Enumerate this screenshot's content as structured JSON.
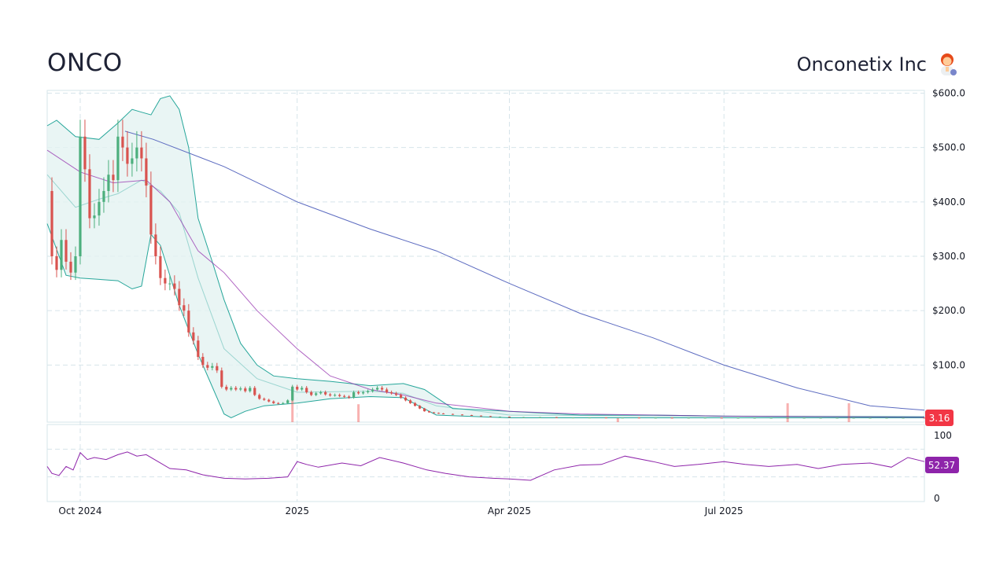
{
  "header": {
    "ticker": "ONCO",
    "company": "Onconetix Inc",
    "company_icon": "scientist-woman-icon"
  },
  "colors": {
    "up": "#26a69a",
    "up_candle": "#4caf7d",
    "down": "#ef5350",
    "down_candle": "#d9534f",
    "sma": "#5c6bc0",
    "bb_fill": "#e3f2f1",
    "bb_line": "#26a69a",
    "rsi": "#8e24aa",
    "grid": "#d6e4ea",
    "last_price_tag": "#f23645",
    "rsi_tag": "#8e24aa"
  },
  "chart_data": {
    "type": "candlestick",
    "price_axis": {
      "ticks": [
        "$600.0",
        "$500.0",
        "$400.0",
        "$300.0",
        "$200.0",
        "$100.0"
      ],
      "tick_values": [
        600,
        500,
        400,
        300,
        200,
        100
      ],
      "ylim": [
        -5,
        605
      ]
    },
    "rsi_axis": {
      "ticks": [
        "100",
        "0"
      ],
      "tick_values": [
        100,
        0
      ],
      "ylim": [
        0,
        100
      ]
    },
    "x_axis": {
      "labels": [
        "Oct 2024",
        "2025",
        "Apr 2025",
        "Jul 2025"
      ],
      "label_dates": [
        "2024-10-01",
        "2025-01-01",
        "2025-04-01",
        "2025-07-01"
      ],
      "range": [
        "2024-09-17",
        "2025-09-24"
      ]
    },
    "last_price": "3.16",
    "last_rsi": "52.37",
    "series": [
      {
        "name": "close",
        "points": [
          [
            "2024-09-17",
            420
          ],
          [
            "2024-09-19",
            300
          ],
          [
            "2024-09-21",
            275
          ],
          [
            "2024-09-23",
            330
          ],
          [
            "2024-09-25",
            290
          ],
          [
            "2024-09-27",
            270
          ],
          [
            "2024-09-29",
            300
          ],
          [
            "2024-10-01",
            520
          ],
          [
            "2024-10-03",
            460
          ],
          [
            "2024-10-05",
            370
          ],
          [
            "2024-10-07",
            375
          ],
          [
            "2024-10-09",
            400
          ],
          [
            "2024-10-11",
            420
          ],
          [
            "2024-10-13",
            450
          ],
          [
            "2024-10-15",
            440
          ],
          [
            "2024-10-17",
            520
          ],
          [
            "2024-10-19",
            500
          ],
          [
            "2024-10-21",
            470
          ],
          [
            "2024-10-23",
            480
          ],
          [
            "2024-10-25",
            500
          ],
          [
            "2024-10-27",
            480
          ],
          [
            "2024-10-29",
            430
          ],
          [
            "2024-10-31",
            340
          ],
          [
            "2024-11-02",
            300
          ],
          [
            "2024-11-04",
            260
          ],
          [
            "2024-11-06",
            250
          ],
          [
            "2024-11-08",
            250
          ],
          [
            "2024-11-10",
            240
          ],
          [
            "2024-11-12",
            210
          ],
          [
            "2024-11-14",
            200
          ],
          [
            "2024-11-16",
            160
          ],
          [
            "2024-11-18",
            145
          ],
          [
            "2024-11-20",
            115
          ],
          [
            "2024-11-22",
            100
          ],
          [
            "2024-11-24",
            95
          ],
          [
            "2024-11-26",
            98
          ],
          [
            "2024-11-28",
            90
          ],
          [
            "2024-11-30",
            60
          ],
          [
            "2024-12-02",
            55
          ],
          [
            "2024-12-04",
            58
          ],
          [
            "2024-12-06",
            55
          ],
          [
            "2024-12-08",
            57
          ],
          [
            "2024-12-10",
            52
          ],
          [
            "2024-12-12",
            58
          ],
          [
            "2024-12-14",
            45
          ],
          [
            "2024-12-16",
            38
          ],
          [
            "2024-12-18",
            36
          ],
          [
            "2024-12-20",
            33
          ],
          [
            "2024-12-22",
            30
          ],
          [
            "2024-12-24",
            29
          ],
          [
            "2024-12-26",
            30
          ],
          [
            "2024-12-28",
            35
          ],
          [
            "2024-12-30",
            60
          ],
          [
            "2025-01-01",
            55
          ],
          [
            "2025-01-03",
            58
          ],
          [
            "2025-01-05",
            50
          ],
          [
            "2025-01-07",
            45
          ],
          [
            "2025-01-09",
            48
          ],
          [
            "2025-01-11",
            50
          ],
          [
            "2025-01-13",
            46
          ],
          [
            "2025-01-15",
            44
          ],
          [
            "2025-01-17",
            45
          ],
          [
            "2025-01-19",
            43
          ],
          [
            "2025-01-21",
            42
          ],
          [
            "2025-01-23",
            40
          ],
          [
            "2025-01-25",
            50
          ],
          [
            "2025-01-27",
            48
          ],
          [
            "2025-01-29",
            50
          ],
          [
            "2025-01-31",
            52
          ],
          [
            "2025-02-02",
            55
          ],
          [
            "2025-02-04",
            58
          ],
          [
            "2025-02-06",
            55
          ],
          [
            "2025-02-08",
            50
          ],
          [
            "2025-02-10",
            48
          ],
          [
            "2025-02-12",
            45
          ],
          [
            "2025-02-14",
            40
          ],
          [
            "2025-02-16",
            35
          ],
          [
            "2025-02-18",
            30
          ],
          [
            "2025-02-20",
            25
          ],
          [
            "2025-02-22",
            20
          ],
          [
            "2025-02-24",
            15
          ],
          [
            "2025-02-26",
            13
          ],
          [
            "2025-02-28",
            12
          ],
          [
            "2025-03-02",
            11
          ],
          [
            "2025-03-04",
            10
          ],
          [
            "2025-03-08",
            9
          ],
          [
            "2025-03-12",
            8
          ],
          [
            "2025-03-16",
            7
          ],
          [
            "2025-03-20",
            6
          ],
          [
            "2025-03-24",
            5
          ],
          [
            "2025-03-28",
            5
          ],
          [
            "2025-04-01",
            4
          ],
          [
            "2025-04-07",
            4
          ],
          [
            "2025-04-14",
            4
          ],
          [
            "2025-04-21",
            3.5
          ],
          [
            "2025-04-28",
            3.5
          ],
          [
            "2025-05-05",
            3.5
          ],
          [
            "2025-05-12",
            3.4
          ],
          [
            "2025-05-19",
            3.4
          ],
          [
            "2025-05-26",
            3.3
          ],
          [
            "2025-06-02",
            3.3
          ],
          [
            "2025-06-09",
            3.2
          ],
          [
            "2025-06-16",
            3.3
          ],
          [
            "2025-06-23",
            3.3
          ],
          [
            "2025-06-30",
            3.2
          ],
          [
            "2025-07-07",
            3.2
          ],
          [
            "2025-07-14",
            3.2
          ],
          [
            "2025-07-21",
            3.2
          ],
          [
            "2025-07-28",
            3.2
          ],
          [
            "2025-08-04",
            3.2
          ],
          [
            "2025-08-11",
            3.2
          ],
          [
            "2025-08-18",
            3.2
          ],
          [
            "2025-08-25",
            3.2
          ],
          [
            "2025-09-01",
            3.2
          ],
          [
            "2025-09-08",
            3.2
          ],
          [
            "2025-09-15",
            3.2
          ],
          [
            "2025-09-24",
            3.16
          ]
        ]
      },
      {
        "name": "sma_long",
        "points": [
          [
            "2024-10-20",
            530
          ],
          [
            "2024-11-01",
            515
          ],
          [
            "2024-12-01",
            465
          ],
          [
            "2025-01-01",
            400
          ],
          [
            "2025-02-01",
            350
          ],
          [
            "2025-03-01",
            310
          ],
          [
            "2025-04-01",
            250
          ],
          [
            "2025-05-01",
            195
          ],
          [
            "2025-06-01",
            150
          ],
          [
            "2025-07-01",
            100
          ],
          [
            "2025-08-01",
            58
          ],
          [
            "2025-09-01",
            25
          ],
          [
            "2025-09-24",
            17
          ]
        ]
      },
      {
        "name": "sma_short",
        "points": [
          [
            "2024-09-17",
            495
          ],
          [
            "2024-10-01",
            455
          ],
          [
            "2024-10-15",
            435
          ],
          [
            "2024-10-29",
            440
          ],
          [
            "2024-11-08",
            400
          ],
          [
            "2024-11-20",
            310
          ],
          [
            "2024-12-01",
            270
          ],
          [
            "2024-12-15",
            200
          ],
          [
            "2025-01-01",
            130
          ],
          [
            "2025-01-15",
            80
          ],
          [
            "2025-02-01",
            55
          ],
          [
            "2025-02-15",
            45
          ],
          [
            "2025-03-01",
            30
          ],
          [
            "2025-04-01",
            15
          ],
          [
            "2025-05-01",
            10
          ],
          [
            "2025-06-01",
            8
          ],
          [
            "2025-07-01",
            6
          ],
          [
            "2025-09-24",
            4
          ]
        ]
      },
      {
        "name": "bb_upper",
        "points": [
          [
            "2024-09-17",
            540
          ],
          [
            "2024-09-21",
            550
          ],
          [
            "2024-09-29",
            520
          ],
          [
            "2024-10-09",
            515
          ],
          [
            "2024-10-17",
            545
          ],
          [
            "2024-10-23",
            570
          ],
          [
            "2024-10-27",
            565
          ],
          [
            "2024-10-31",
            560
          ],
          [
            "2024-11-04",
            590
          ],
          [
            "2024-11-08",
            595
          ],
          [
            "2024-11-12",
            570
          ],
          [
            "2024-11-16",
            500
          ],
          [
            "2024-11-20",
            370
          ],
          [
            "2024-11-26",
            290
          ],
          [
            "2024-12-01",
            220
          ],
          [
            "2024-12-08",
            140
          ],
          [
            "2024-12-15",
            100
          ],
          [
            "2024-12-22",
            80
          ],
          [
            "2025-01-01",
            75
          ],
          [
            "2025-01-15",
            70
          ],
          [
            "2025-02-01",
            62
          ],
          [
            "2025-02-15",
            66
          ],
          [
            "2025-02-24",
            55
          ],
          [
            "2025-03-08",
            20
          ],
          [
            "2025-04-01",
            15
          ],
          [
            "2025-05-01",
            8
          ],
          [
            "2025-06-01",
            8
          ],
          [
            "2025-07-01",
            6
          ],
          [
            "2025-09-24",
            5
          ]
        ]
      },
      {
        "name": "bb_lower",
        "points": [
          [
            "2024-09-17",
            360
          ],
          [
            "2024-09-25",
            265
          ],
          [
            "2024-10-01",
            260
          ],
          [
            "2024-10-17",
            255
          ],
          [
            "2024-10-23",
            240
          ],
          [
            "2024-10-27",
            245
          ],
          [
            "2024-10-31",
            340
          ],
          [
            "2024-11-04",
            320
          ],
          [
            "2024-11-12",
            210
          ],
          [
            "2024-11-20",
            120
          ],
          [
            "2024-11-26",
            60
          ],
          [
            "2024-12-01",
            10
          ],
          [
            "2024-12-04",
            3
          ],
          [
            "2024-12-10",
            15
          ],
          [
            "2024-12-18",
            25
          ],
          [
            "2025-01-01",
            30
          ],
          [
            "2025-01-15",
            38
          ],
          [
            "2025-02-01",
            42
          ],
          [
            "2025-02-15",
            40
          ],
          [
            "2025-03-01",
            8
          ],
          [
            "2025-04-01",
            3
          ],
          [
            "2025-05-01",
            3
          ],
          [
            "2025-07-01",
            3
          ],
          [
            "2025-09-24",
            3
          ]
        ]
      },
      {
        "name": "bb_mid",
        "points": [
          [
            "2024-09-17",
            450
          ],
          [
            "2024-09-29",
            390
          ],
          [
            "2024-10-09",
            405
          ],
          [
            "2024-10-17",
            415
          ],
          [
            "2024-10-27",
            440
          ],
          [
            "2024-11-04",
            420
          ],
          [
            "2024-11-12",
            380
          ],
          [
            "2024-11-20",
            260
          ],
          [
            "2024-12-01",
            130
          ],
          [
            "2024-12-15",
            75
          ],
          [
            "2025-01-01",
            50
          ],
          [
            "2025-02-01",
            52
          ],
          [
            "2025-02-15",
            48
          ],
          [
            "2025-03-01",
            25
          ],
          [
            "2025-04-01",
            8
          ],
          [
            "2025-09-24",
            4
          ]
        ]
      },
      {
        "name": "rsi",
        "points": [
          [
            "2024-09-17",
            45
          ],
          [
            "2024-09-19",
            35
          ],
          [
            "2024-09-22",
            32
          ],
          [
            "2024-09-25",
            45
          ],
          [
            "2024-09-28",
            40
          ],
          [
            "2024-10-01",
            65
          ],
          [
            "2024-10-04",
            55
          ],
          [
            "2024-10-07",
            58
          ],
          [
            "2024-10-12",
            55
          ],
          [
            "2024-10-17",
            62
          ],
          [
            "2024-10-21",
            66
          ],
          [
            "2024-10-25",
            60
          ],
          [
            "2024-10-29",
            62
          ],
          [
            "2024-11-03",
            52
          ],
          [
            "2024-11-08",
            42
          ],
          [
            "2024-11-15",
            40
          ],
          [
            "2024-11-22",
            33
          ],
          [
            "2024-12-01",
            28
          ],
          [
            "2024-12-10",
            27
          ],
          [
            "2024-12-20",
            28
          ],
          [
            "2024-12-28",
            30
          ],
          [
            "2025-01-01",
            52
          ],
          [
            "2025-01-05",
            48
          ],
          [
            "2025-01-10",
            44
          ],
          [
            "2025-01-20",
            50
          ],
          [
            "2025-01-28",
            46
          ],
          [
            "2025-02-05",
            58
          ],
          [
            "2025-02-15",
            50
          ],
          [
            "2025-02-25",
            40
          ],
          [
            "2025-03-05",
            35
          ],
          [
            "2025-03-15",
            30
          ],
          [
            "2025-03-25",
            28
          ],
          [
            "2025-04-01",
            27
          ],
          [
            "2025-04-10",
            25
          ],
          [
            "2025-04-20",
            40
          ],
          [
            "2025-05-01",
            47
          ],
          [
            "2025-05-10",
            48
          ],
          [
            "2025-05-20",
            60
          ],
          [
            "2025-06-01",
            52
          ],
          [
            "2025-06-10",
            45
          ],
          [
            "2025-06-20",
            48
          ],
          [
            "2025-07-01",
            52
          ],
          [
            "2025-07-10",
            48
          ],
          [
            "2025-07-20",
            45
          ],
          [
            "2025-08-01",
            48
          ],
          [
            "2025-08-10",
            42
          ],
          [
            "2025-08-20",
            48
          ],
          [
            "2025-09-01",
            50
          ],
          [
            "2025-09-10",
            44
          ],
          [
            "2025-09-17",
            58
          ],
          [
            "2025-09-24",
            52
          ]
        ]
      }
    ],
    "volume_spikes": [
      [
        "2024-12-30",
        180
      ],
      [
        "2025-01-27",
        90
      ],
      [
        "2025-05-17",
        20
      ],
      [
        "2025-07-28",
        95
      ],
      [
        "2025-08-23",
        95
      ]
    ]
  }
}
